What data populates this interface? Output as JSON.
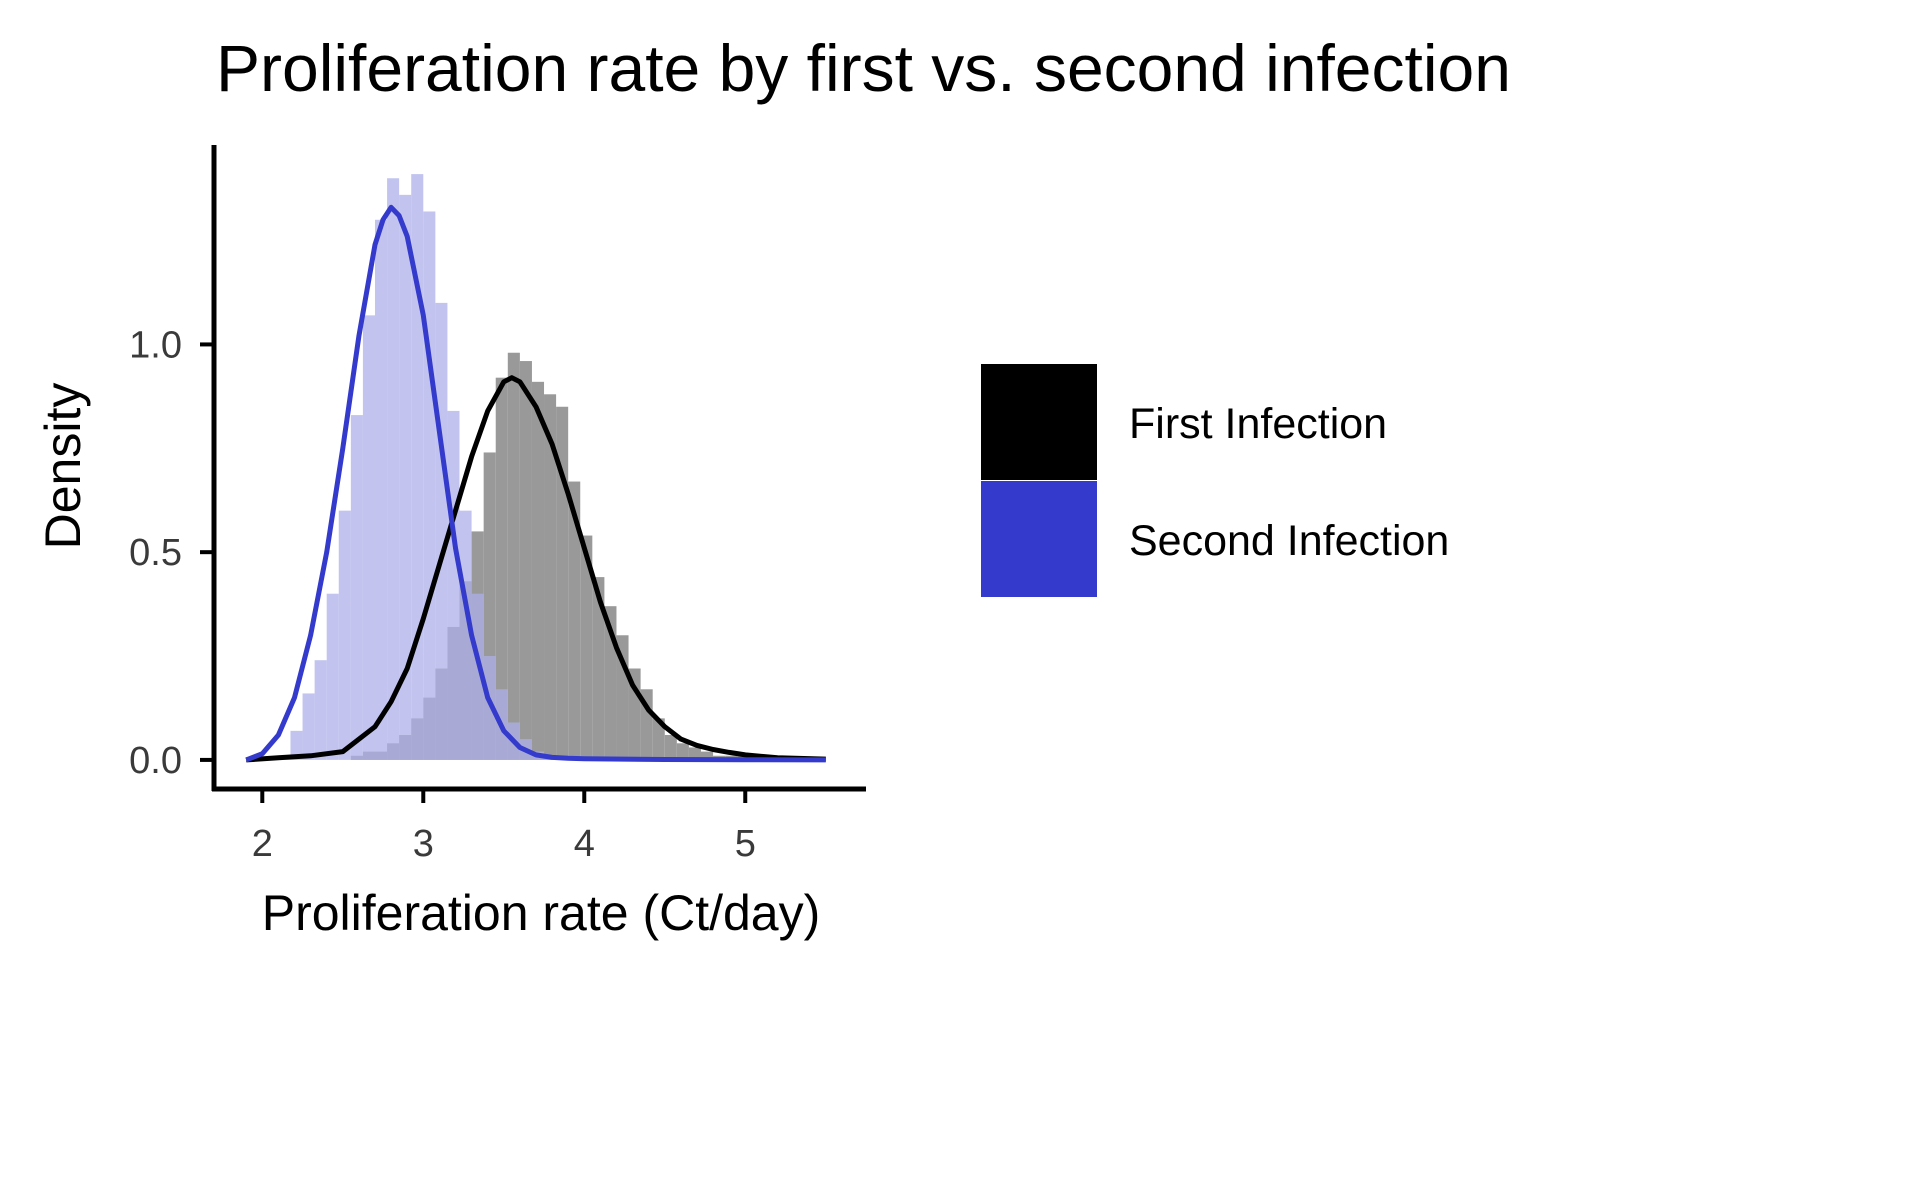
{
  "chart_data": {
    "type": "histogram-density",
    "title": "Proliferation rate by first vs. second infection",
    "xlabel": "Proliferation rate (Ct/day)",
    "ylabel": "Density",
    "xlim": [
      1.7,
      5.75
    ],
    "ylim": [
      -0.07,
      1.48
    ],
    "x_ticks": [
      "2",
      "3",
      "4",
      "5"
    ],
    "y_ticks": [
      "0.0",
      "0.5",
      "1.0"
    ],
    "legend_position": "right",
    "series": [
      {
        "name": "First Infection",
        "color": "#000000",
        "hist_fill": "#999999",
        "bin_width": 0.075,
        "hist_bins": [
          {
            "x0": 2.55,
            "d": 0.01
          },
          {
            "x0": 2.625,
            "d": 0.02
          },
          {
            "x0": 2.7,
            "d": 0.02
          },
          {
            "x0": 2.775,
            "d": 0.04
          },
          {
            "x0": 2.85,
            "d": 0.06
          },
          {
            "x0": 2.925,
            "d": 0.1
          },
          {
            "x0": 3.0,
            "d": 0.15
          },
          {
            "x0": 3.075,
            "d": 0.22
          },
          {
            "x0": 3.15,
            "d": 0.32
          },
          {
            "x0": 3.225,
            "d": 0.43
          },
          {
            "x0": 3.3,
            "d": 0.55
          },
          {
            "x0": 3.375,
            "d": 0.74
          },
          {
            "x0": 3.45,
            "d": 0.92
          },
          {
            "x0": 3.525,
            "d": 0.98
          },
          {
            "x0": 3.6,
            "d": 0.96
          },
          {
            "x0": 3.675,
            "d": 0.91
          },
          {
            "x0": 3.75,
            "d": 0.88
          },
          {
            "x0": 3.825,
            "d": 0.85
          },
          {
            "x0": 3.9,
            "d": 0.67
          },
          {
            "x0": 3.975,
            "d": 0.54
          },
          {
            "x0": 4.05,
            "d": 0.44
          },
          {
            "x0": 4.125,
            "d": 0.37
          },
          {
            "x0": 4.2,
            "d": 0.3
          },
          {
            "x0": 4.275,
            "d": 0.22
          },
          {
            "x0": 4.35,
            "d": 0.17
          },
          {
            "x0": 4.425,
            "d": 0.1
          },
          {
            "x0": 4.5,
            "d": 0.06
          },
          {
            "x0": 4.575,
            "d": 0.04
          },
          {
            "x0": 4.65,
            "d": 0.03
          },
          {
            "x0": 4.725,
            "d": 0.02
          },
          {
            "x0": 4.8,
            "d": 0.01
          },
          {
            "x0": 4.875,
            "d": 0.01
          },
          {
            "x0": 4.95,
            "d": 0.01
          }
        ],
        "density_curve": {
          "x": [
            1.9,
            2.1,
            2.3,
            2.5,
            2.7,
            2.8,
            2.9,
            3.0,
            3.1,
            3.2,
            3.3,
            3.4,
            3.5,
            3.55,
            3.6,
            3.7,
            3.8,
            3.9,
            4.0,
            4.1,
            4.2,
            4.3,
            4.4,
            4.5,
            4.6,
            4.7,
            4.8,
            4.9,
            5.0,
            5.2,
            5.5
          ],
          "y": [
            0.0,
            0.005,
            0.01,
            0.02,
            0.08,
            0.14,
            0.22,
            0.34,
            0.47,
            0.6,
            0.73,
            0.84,
            0.91,
            0.92,
            0.91,
            0.85,
            0.76,
            0.64,
            0.51,
            0.38,
            0.27,
            0.18,
            0.12,
            0.08,
            0.05,
            0.035,
            0.025,
            0.018,
            0.012,
            0.005,
            0.002
          ]
        }
      },
      {
        "name": "Second Infection",
        "color": "#333acc",
        "hist_fill": "#adb0ea",
        "bin_width": 0.075,
        "hist_bins": [
          {
            "x0": 2.1,
            "d": 0.01
          },
          {
            "x0": 2.175,
            "d": 0.07
          },
          {
            "x0": 2.25,
            "d": 0.16
          },
          {
            "x0": 2.325,
            "d": 0.24
          },
          {
            "x0": 2.4,
            "d": 0.4
          },
          {
            "x0": 2.475,
            "d": 0.6
          },
          {
            "x0": 2.55,
            "d": 0.83
          },
          {
            "x0": 2.625,
            "d": 1.07
          },
          {
            "x0": 2.7,
            "d": 1.3
          },
          {
            "x0": 2.775,
            "d": 1.4
          },
          {
            "x0": 2.85,
            "d": 1.36
          },
          {
            "x0": 2.925,
            "d": 1.41
          },
          {
            "x0": 3.0,
            "d": 1.32
          },
          {
            "x0": 3.075,
            "d": 1.1
          },
          {
            "x0": 3.15,
            "d": 0.84
          },
          {
            "x0": 3.225,
            "d": 0.6
          },
          {
            "x0": 3.3,
            "d": 0.4
          },
          {
            "x0": 3.375,
            "d": 0.25
          },
          {
            "x0": 3.45,
            "d": 0.17
          },
          {
            "x0": 3.525,
            "d": 0.09
          },
          {
            "x0": 3.6,
            "d": 0.05
          },
          {
            "x0": 3.675,
            "d": 0.02
          },
          {
            "x0": 3.75,
            "d": 0.01
          }
        ],
        "density_curve": {
          "x": [
            1.9,
            2.0,
            2.1,
            2.2,
            2.3,
            2.4,
            2.5,
            2.6,
            2.7,
            2.75,
            2.8,
            2.85,
            2.9,
            3.0,
            3.1,
            3.2,
            3.3,
            3.4,
            3.5,
            3.6,
            3.7,
            3.8,
            3.9,
            4.0,
            4.5,
            5.0,
            5.5
          ],
          "y": [
            0.0,
            0.015,
            0.06,
            0.15,
            0.3,
            0.5,
            0.75,
            1.02,
            1.24,
            1.3,
            1.33,
            1.31,
            1.26,
            1.07,
            0.79,
            0.51,
            0.3,
            0.15,
            0.07,
            0.03,
            0.012,
            0.006,
            0.004,
            0.003,
            0.001,
            0.0005,
            0.0
          ]
        }
      }
    ]
  },
  "legend": {
    "items": [
      {
        "label": "First Infection",
        "color": "#000000"
      },
      {
        "label": "Second Infection",
        "color": "#333acc"
      }
    ]
  }
}
